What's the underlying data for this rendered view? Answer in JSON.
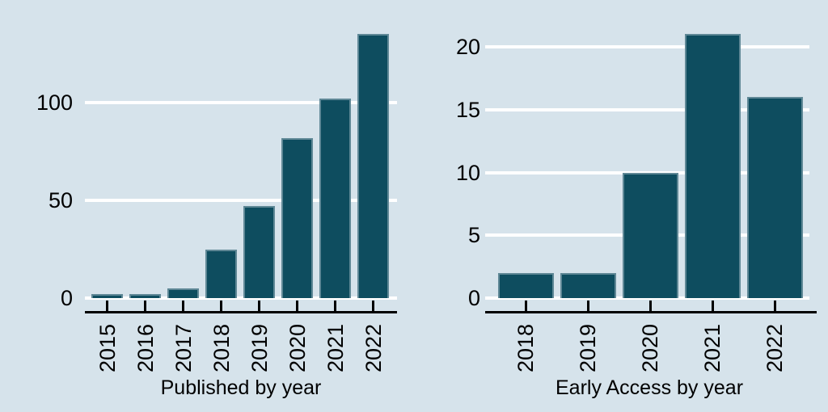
{
  "page": {
    "background_color": "#d6e3eb",
    "bar_fill_color": "#0e4d5f",
    "bar_border_color": "#5f8896",
    "gridline_color": "#ffffff",
    "axis_color": "#000000",
    "text_color": "#000000"
  },
  "chart_data": [
    {
      "type": "bar",
      "title": "",
      "xlabel": "Published by year",
      "ylabel": "",
      "categories": [
        "2015",
        "2016",
        "2017",
        "2018",
        "2019",
        "2020",
        "2021",
        "2022"
      ],
      "values": [
        2,
        2,
        5,
        25,
        47,
        82,
        102,
        135
      ],
      "yticks": [
        0,
        50,
        100
      ],
      "ytick_labels": [
        "0",
        "50",
        "100"
      ],
      "ylim": [
        0,
        136
      ],
      "grid": "horizontal white gridlines",
      "legend": "none",
      "x_tick_label_rotation": -90
    },
    {
      "type": "bar",
      "title": "",
      "xlabel": "Early Access by year",
      "ylabel": "",
      "categories": [
        "2018",
        "2019",
        "2020",
        "2021",
        "2022"
      ],
      "values": [
        2,
        2,
        10,
        21,
        16
      ],
      "yticks": [
        0,
        5,
        10,
        15,
        20
      ],
      "ytick_labels": [
        "0",
        "5",
        "10",
        "15",
        "20"
      ],
      "ylim": [
        0,
        21.5
      ],
      "grid": "horizontal white gridlines",
      "legend": "none",
      "x_tick_label_rotation": -90
    }
  ]
}
